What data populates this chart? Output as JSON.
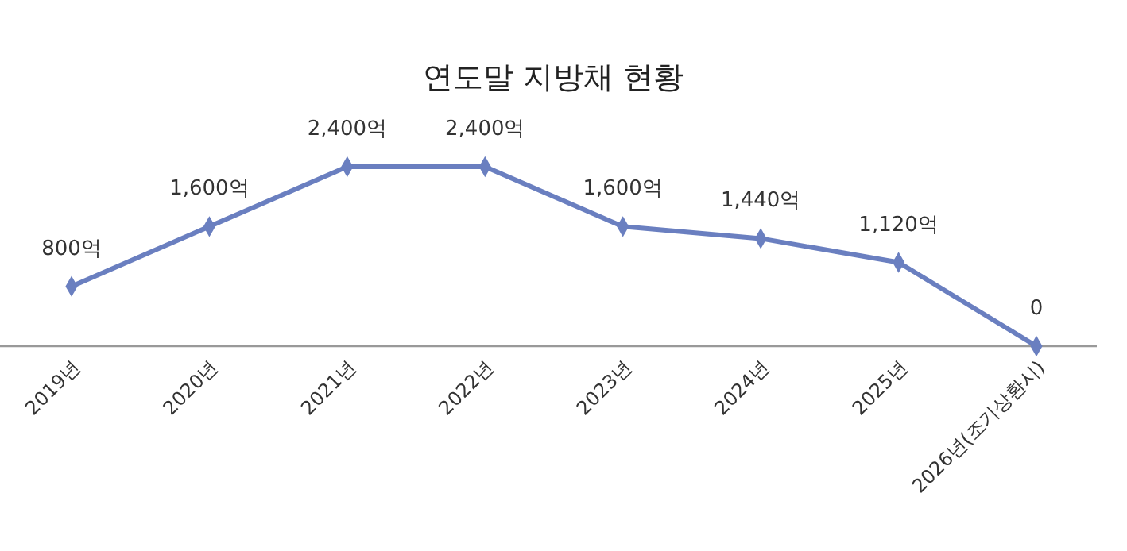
{
  "chart_data": {
    "type": "line",
    "title": "연도말 지방채 현황",
    "categories": [
      "2019년",
      "2020년",
      "2021년",
      "2022년",
      "2023년",
      "2024년",
      "2025년",
      "2026년(조기상환시)"
    ],
    "series": [
      {
        "color": "#6a7fc0",
        "values": [
          800,
          1600,
          2400,
          2400,
          1600,
          1440,
          1120,
          0
        ],
        "value_labels": [
          "800억",
          "1,600억",
          "2,400억",
          "2,400억",
          "1,600억",
          "1,440억",
          "1,120억",
          "0"
        ]
      }
    ],
    "marker": "diamond",
    "line_style": "solid"
  }
}
